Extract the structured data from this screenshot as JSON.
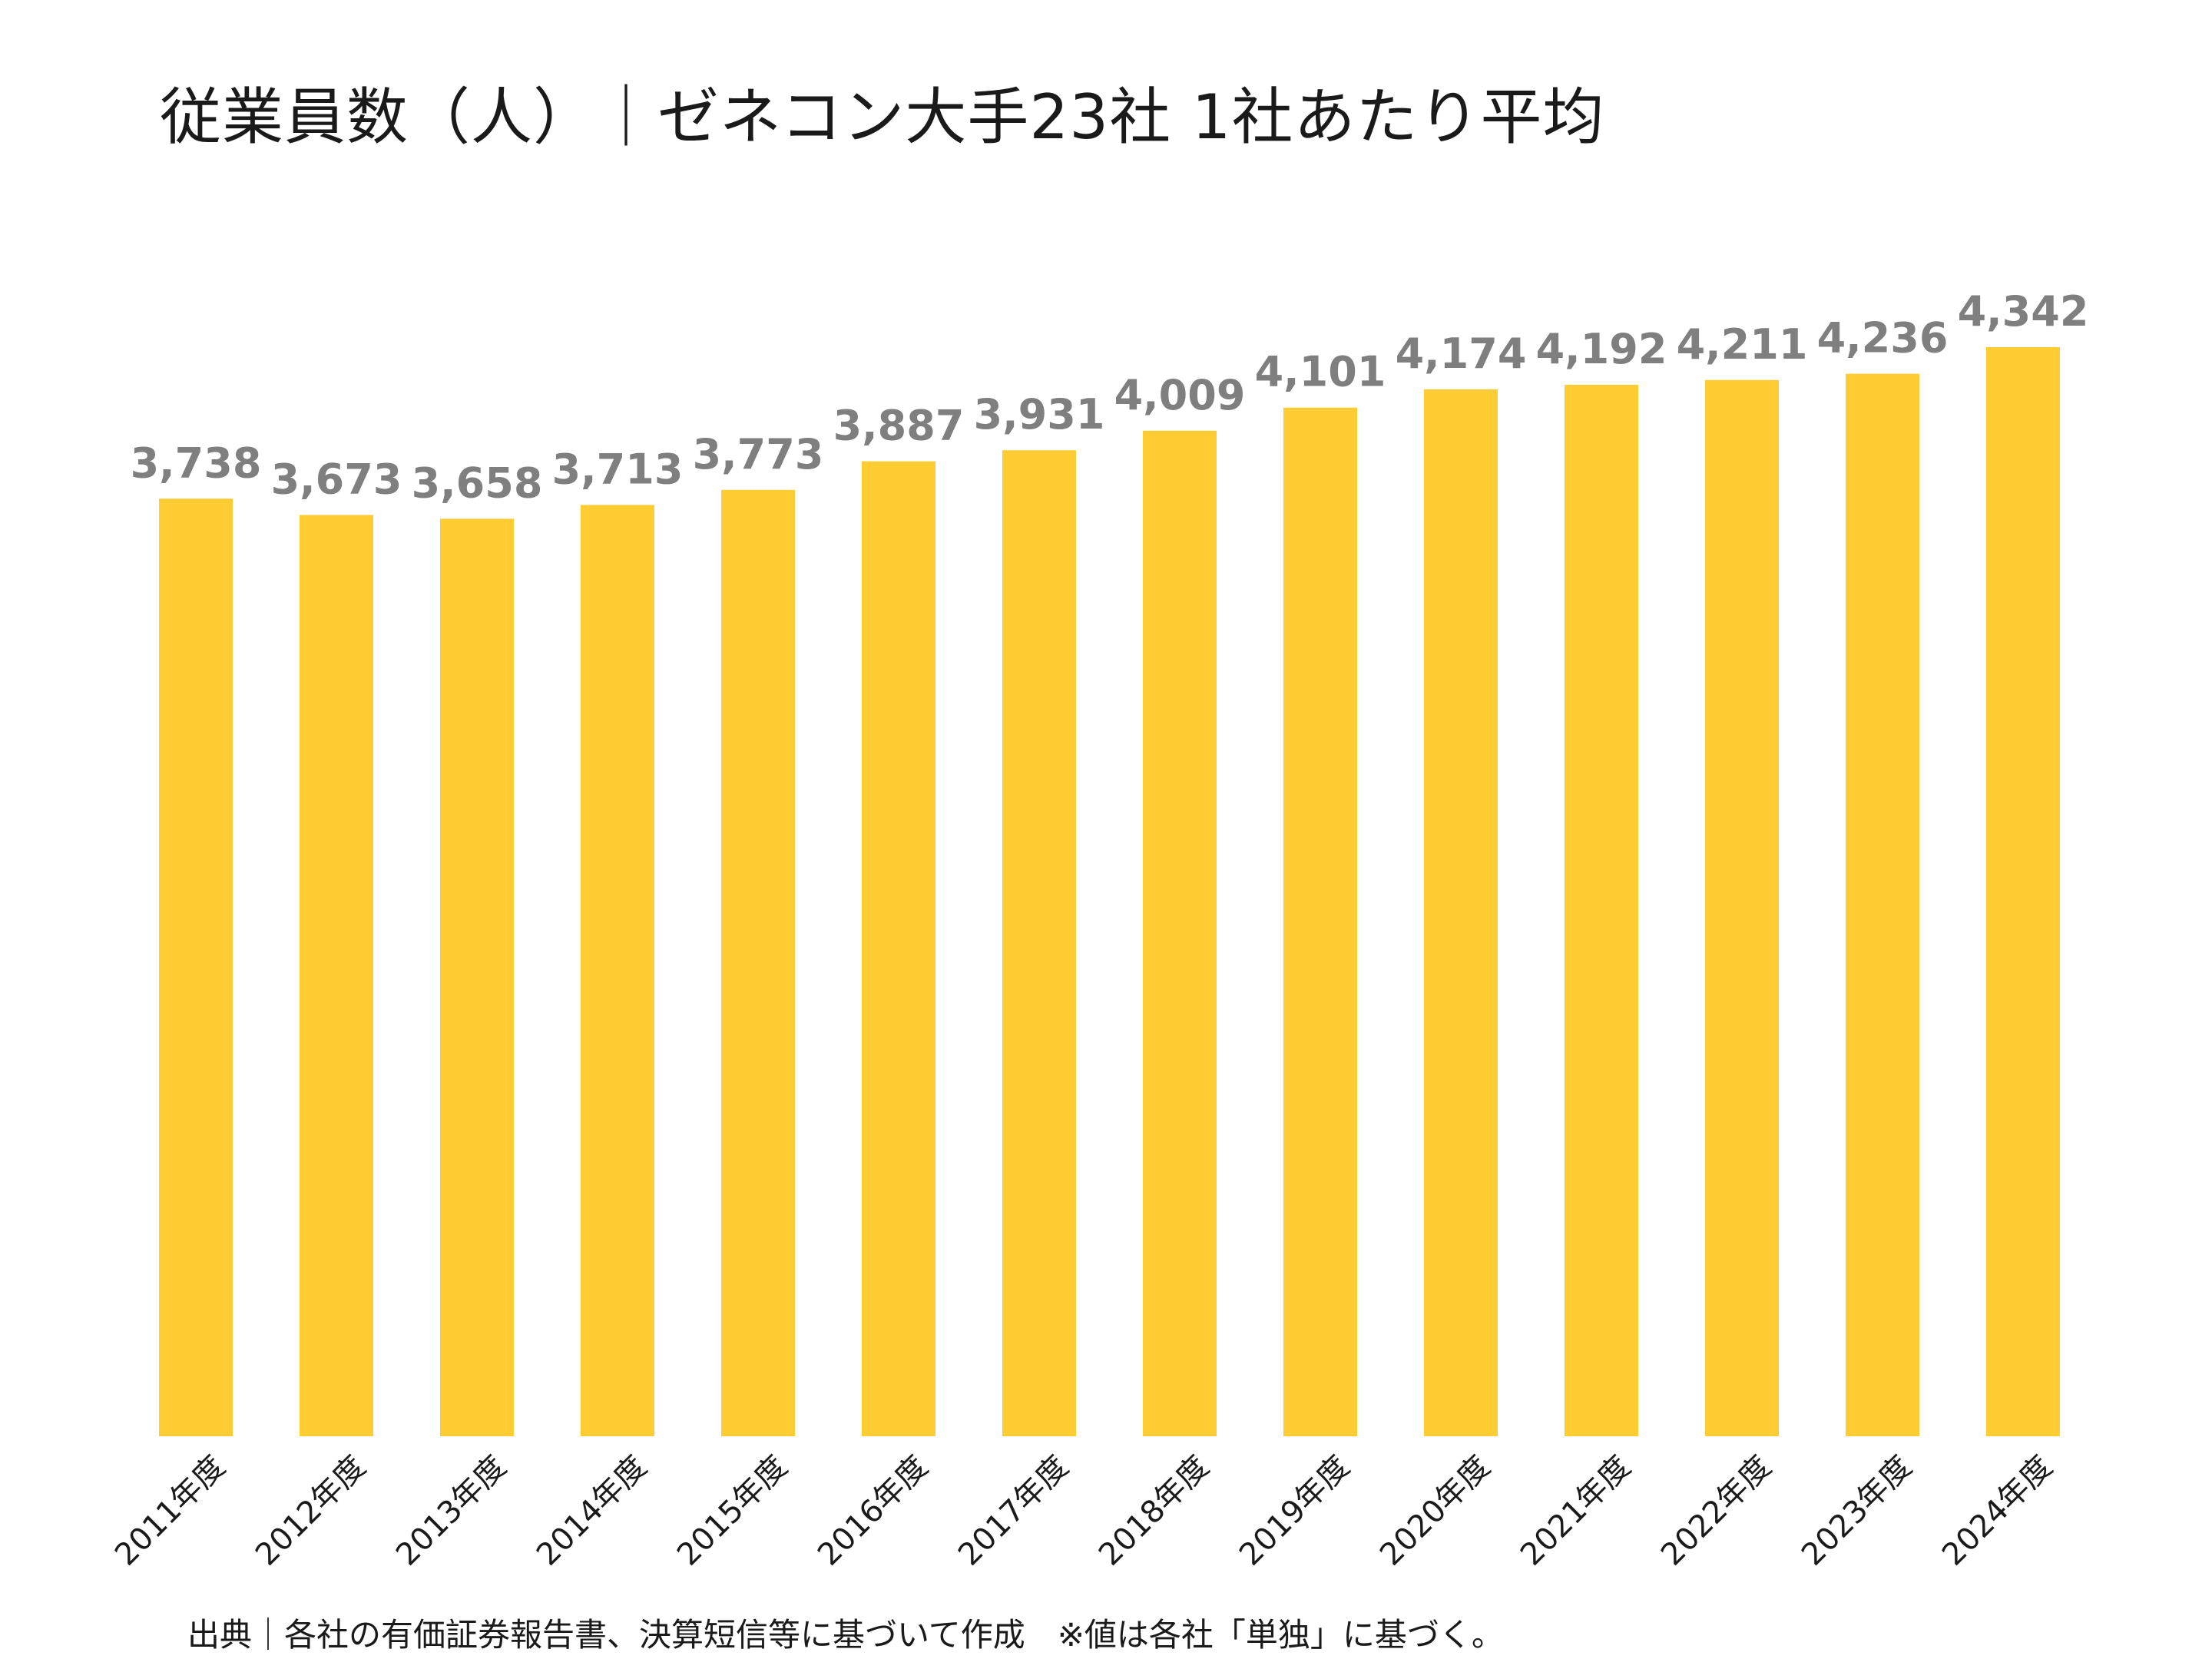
{
  "title": "従業員数（人）｜ゼネコン大手23社 1社あたり平均",
  "footnote": "出典｜各社の有価証券報告書、決算短信等に基づいて作成　※値は各社「単独」に基づく。",
  "colors": {
    "bar": "#FFCC33",
    "value_label": "#7F7F7F",
    "text": "#1A1A1A"
  },
  "chart_data": {
    "type": "bar",
    "categories": [
      "2011年度",
      "2012年度",
      "2013年度",
      "2014年度",
      "2015年度",
      "2016年度",
      "2017年度",
      "2018年度",
      "2019年度",
      "2020年度",
      "2021年度",
      "2022年度",
      "2023年度",
      "2024年度"
    ],
    "values": [
      3738,
      3673,
      3658,
      3713,
      3773,
      3887,
      3931,
      4009,
      4101,
      4174,
      4192,
      4211,
      4236,
      4342
    ],
    "value_labels": [
      "3,738",
      "3,673",
      "3,658",
      "3,713",
      "3,773",
      "3,887",
      "3,931",
      "4,009",
      "4,101",
      "4,174",
      "4,192",
      "4,211",
      "4,236",
      "4,342"
    ],
    "ylim": [
      0,
      4342
    ],
    "grid": false,
    "legend": "none"
  }
}
